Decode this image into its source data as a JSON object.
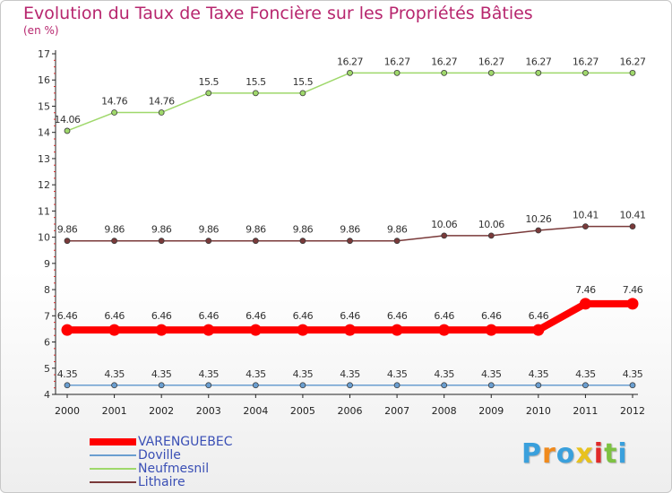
{
  "chart_data": {
    "type": "line",
    "title": "Evolution du Taux de Taxe Foncière sur les Propriétés Bâties",
    "unit_label": "(en %)",
    "xlabel": "",
    "ylabel": "(en %)",
    "categories": [
      "2000",
      "2001",
      "2002",
      "2003",
      "2004",
      "2005",
      "2006",
      "2007",
      "2008",
      "2009",
      "2010",
      "2011",
      "2012"
    ],
    "ylim": [
      4,
      17
    ],
    "yticks": [
      4,
      5,
      6,
      7,
      8,
      9,
      10,
      11,
      12,
      13,
      14,
      15,
      16,
      17
    ],
    "series": [
      {
        "name": "VARENGUEBEC",
        "color": "#ff0000",
        "values": [
          6.46,
          6.46,
          6.46,
          6.46,
          6.46,
          6.46,
          6.46,
          6.46,
          6.46,
          6.46,
          6.46,
          7.46,
          7.46
        ],
        "labels": [
          "6.46",
          "6.46",
          "6.46",
          "6.46",
          "6.46",
          "6.46",
          "6.46",
          "6.46",
          "6.46",
          "6.46",
          "6.46",
          "7.46",
          "7.46"
        ]
      },
      {
        "name": "Doville",
        "color": "#6a9ed0",
        "values": [
          4.35,
          4.35,
          4.35,
          4.35,
          4.35,
          4.35,
          4.35,
          4.35,
          4.35,
          4.35,
          4.35,
          4.35,
          4.35
        ],
        "labels": [
          "4.35",
          "4.35",
          "4.35",
          "4.35",
          "4.35",
          "4.35",
          "4.35",
          "4.35",
          "4.35",
          "4.35",
          "4.35",
          "4.35",
          "4.35"
        ]
      },
      {
        "name": "Neufmesnil",
        "color": "#9fd86b",
        "values": [
          14.06,
          14.76,
          14.76,
          15.5,
          15.5,
          15.5,
          16.27,
          16.27,
          16.27,
          16.27,
          16.27,
          16.27,
          16.27
        ],
        "labels": [
          "14.06",
          "14.76",
          "14.76",
          "15.5",
          "15.5",
          "15.5",
          "16.27",
          "16.27",
          "16.27",
          "16.27",
          "16.27",
          "16.27",
          "16.27"
        ]
      },
      {
        "name": "Lithaire",
        "color": "#7a3a3a",
        "values": [
          9.86,
          9.86,
          9.86,
          9.86,
          9.86,
          9.86,
          9.86,
          9.86,
          10.06,
          10.06,
          10.26,
          10.41,
          10.41
        ],
        "labels": [
          "9.86",
          "9.86",
          "9.86",
          "9.86",
          "9.86",
          "9.86",
          "9.86",
          "9.86",
          "10.06",
          "10.06",
          "10.26",
          "10.41",
          "10.41"
        ]
      }
    ],
    "legend_position": "bottom-left",
    "grid": false
  },
  "logo": {
    "text": "Proxiti"
  }
}
